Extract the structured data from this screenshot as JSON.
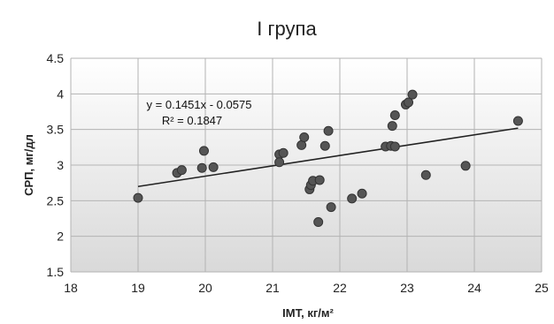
{
  "chart_data": {
    "type": "scatter",
    "title": "I група",
    "xlabel": "IMT, кг/м²",
    "ylabel": "СРП, мг/дл",
    "xlim": [
      18,
      25
    ],
    "ylim": [
      1.5,
      4.5
    ],
    "x_ticks": [
      "18",
      "19",
      "20",
      "21",
      "22",
      "23",
      "24",
      "25"
    ],
    "y_ticks": [
      "1.5",
      "2",
      "2.5",
      "3",
      "3.5",
      "4",
      "4.5"
    ],
    "grid": true,
    "legend": "none",
    "colors": {
      "point": "#555555",
      "point_stroke": "#333333",
      "trendline": "#222222",
      "grid": "#b3b3b3"
    },
    "trendline": {
      "slope": 0.1451,
      "intercept": -0.0575,
      "x_range": [
        19,
        24.65
      ],
      "equation": "y = 0.1451x - 0.0575",
      "r2": "R² = 0.1847"
    },
    "points": [
      {
        "x": 19.0,
        "y": 2.54
      },
      {
        "x": 19.58,
        "y": 2.89
      },
      {
        "x": 19.65,
        "y": 2.93
      },
      {
        "x": 19.95,
        "y": 2.96
      },
      {
        "x": 19.98,
        "y": 3.2
      },
      {
        "x": 20.12,
        "y": 2.97
      },
      {
        "x": 21.1,
        "y": 3.15
      },
      {
        "x": 21.1,
        "y": 3.04
      },
      {
        "x": 21.16,
        "y": 3.17
      },
      {
        "x": 21.43,
        "y": 3.28
      },
      {
        "x": 21.47,
        "y": 3.39
      },
      {
        "x": 21.55,
        "y": 2.66
      },
      {
        "x": 21.57,
        "y": 2.72
      },
      {
        "x": 21.6,
        "y": 2.78
      },
      {
        "x": 21.68,
        "y": 2.2
      },
      {
        "x": 21.7,
        "y": 2.79
      },
      {
        "x": 21.78,
        "y": 3.27
      },
      {
        "x": 21.83,
        "y": 3.48
      },
      {
        "x": 21.87,
        "y": 2.41
      },
      {
        "x": 22.18,
        "y": 2.53
      },
      {
        "x": 22.33,
        "y": 2.6
      },
      {
        "x": 22.68,
        "y": 3.26
      },
      {
        "x": 22.76,
        "y": 3.27
      },
      {
        "x": 22.78,
        "y": 3.55
      },
      {
        "x": 22.82,
        "y": 3.26
      },
      {
        "x": 22.82,
        "y": 3.7
      },
      {
        "x": 22.98,
        "y": 3.85
      },
      {
        "x": 23.02,
        "y": 3.88
      },
      {
        "x": 23.08,
        "y": 3.99
      },
      {
        "x": 23.28,
        "y": 2.86
      },
      {
        "x": 23.87,
        "y": 2.99
      },
      {
        "x": 24.65,
        "y": 3.62
      }
    ]
  }
}
